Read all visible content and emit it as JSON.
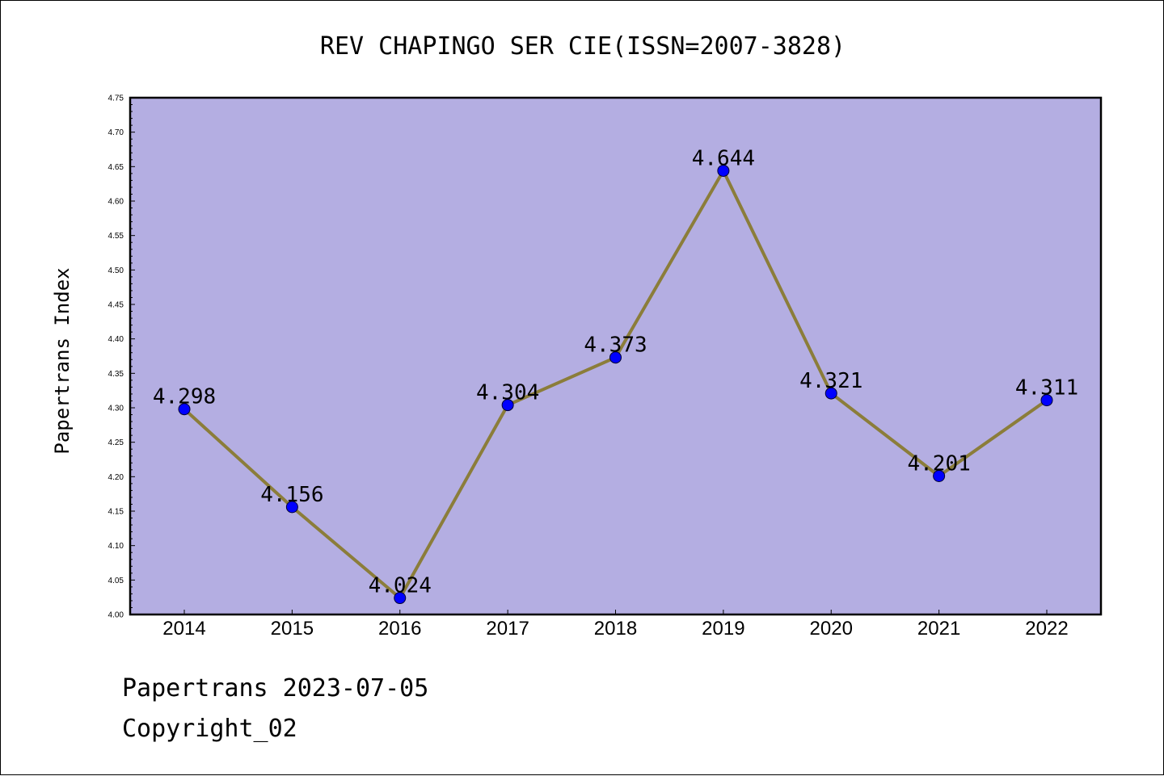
{
  "chart_data": {
    "type": "line",
    "title": "REV CHAPINGO SER CIE(ISSN=2007-3828)",
    "xlabel": "",
    "ylabel": "Papertrans Index",
    "categories": [
      "2014",
      "2015",
      "2016",
      "2017",
      "2018",
      "2019",
      "2020",
      "2021",
      "2022"
    ],
    "series": [
      {
        "values": [
          4.298,
          4.156,
          4.024,
          4.304,
          4.373,
          4.644,
          4.321,
          4.201,
          4.311
        ],
        "labels": [
          "4.298",
          "4.156",
          "4.024",
          "4.304",
          "4.373",
          "4.644",
          "4.321",
          "4.201",
          "4.311"
        ]
      }
    ],
    "ylim": [
      4.0,
      4.75
    ],
    "yticks": [
      "4.00",
      "4.05",
      "4.10",
      "4.15",
      "4.20",
      "4.25",
      "4.30",
      "4.35",
      "4.40",
      "4.45",
      "4.50",
      "4.55",
      "4.60",
      "4.65",
      "4.70",
      "4.75"
    ],
    "grid": false,
    "legend": "none",
    "colors": {
      "plot_background": "#b4aee2",
      "line": "#8b7d3a",
      "marker": "#0000ff"
    }
  },
  "footer": {
    "line1": "Papertrans 2023-07-05",
    "line2": "Copyright_02"
  }
}
